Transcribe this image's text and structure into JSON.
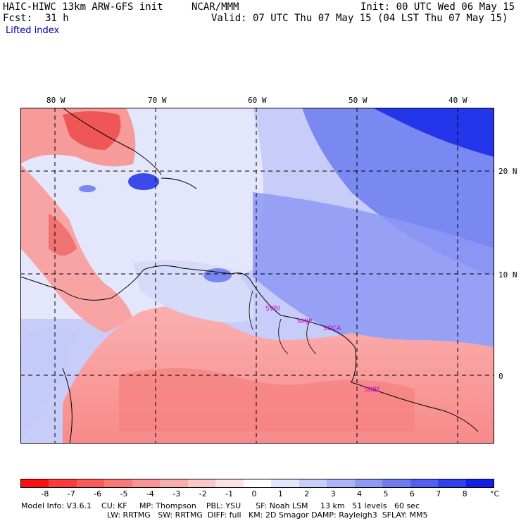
{
  "header": {
    "model": "HAIC-HIWC 13km ARW-GFS init",
    "org": "NCAR/MMM",
    "init": "Init: 00 UTC Wed 06 May 15",
    "fcst_label": "Fcst:",
    "fcst_value": "31 h",
    "valid": "Valid: 07 UTC Thu 07 May 15 (04 LST Thu 07 May 15)",
    "field": "Lifted index"
  },
  "map": {
    "lon_labels": [
      "80 W",
      "70 W",
      "60 W",
      "50 W",
      "40 W"
    ],
    "lat_labels": [
      "20 N",
      "10 N",
      "0"
    ],
    "stations": [
      "SVBI",
      "SMJP",
      "SOCA",
      "SBBE"
    ]
  },
  "colorbar": {
    "labels": [
      "-8",
      "-7",
      "-6",
      "-5",
      "-4",
      "-3",
      "-2",
      "-1",
      "0",
      "1",
      "2",
      "3",
      "4",
      "5",
      "6",
      "7",
      "8"
    ],
    "unit": "°C",
    "colors": [
      "#ff1010",
      "#ff3a3a",
      "#ff5a5a",
      "#fb7878",
      "#f99494",
      "#f9aeae",
      "#fbc8c8",
      "#fde2e2",
      "#ffffff",
      "#e2e6fb",
      "#c8cef9",
      "#aab4f7",
      "#8e98f5",
      "#707cf2",
      "#5060ef",
      "#3040ec",
      "#1020e6"
    ]
  },
  "footer": {
    "line1": "Model Info: V3.6.1    CU: KF     MP: Thompson    PBL: YSU      SF: Noah LSM     13 km   51 levels   60 sec",
    "line2": "LW: RRTMG   SW: RRTMG  DIFF: full   KM: 2D Smagor DAMP: Rayleigh3  SFLAY: MM5"
  }
}
